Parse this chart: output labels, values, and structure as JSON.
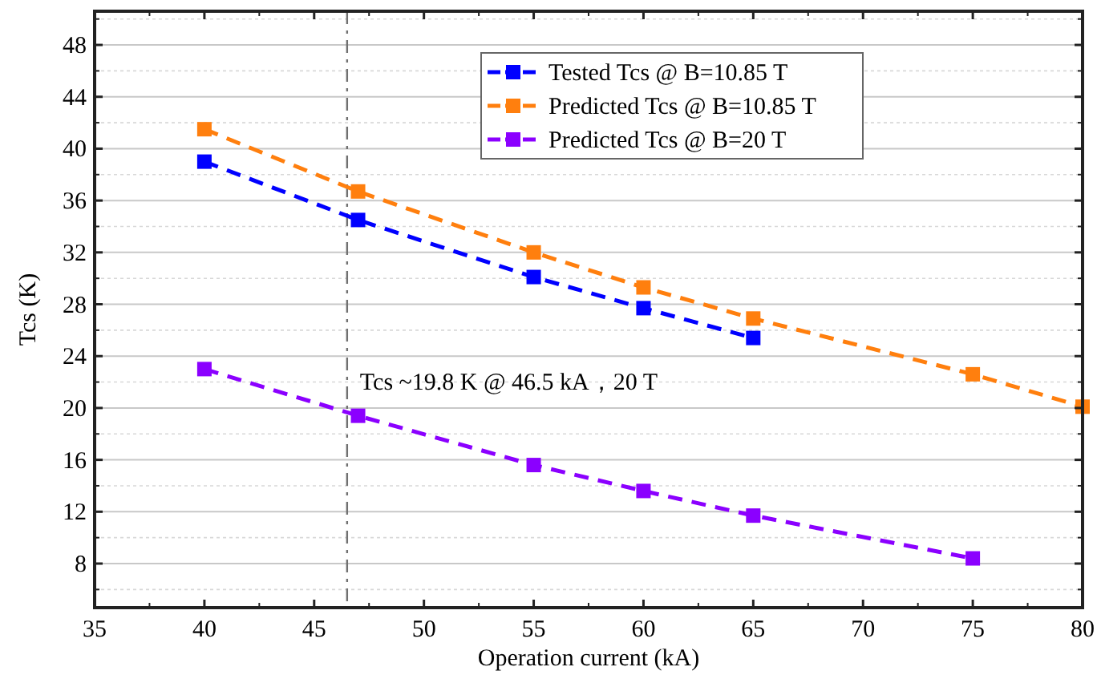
{
  "chart_data": {
    "type": "line",
    "xlabel": "Operation current (kA)",
    "ylabel": "Tcs (K)",
    "xlim": [
      35,
      80
    ],
    "xticks": [
      35,
      40,
      45,
      50,
      55,
      60,
      65,
      70,
      75,
      80
    ],
    "ylim": [
      4.6,
      50.6
    ],
    "yticks": [
      8,
      12,
      16,
      20,
      24,
      28,
      32,
      36,
      40,
      44,
      48
    ],
    "grid": true,
    "legend": "top right",
    "marker": "square",
    "line_style": "dashed",
    "series": [
      {
        "name": "Tested Tcs @ B=10.85 T",
        "color": "#0000ff",
        "x": [
          40,
          47,
          55,
          60,
          65
        ],
        "values": [
          39.0,
          34.5,
          30.1,
          27.7,
          25.4
        ]
      },
      {
        "name": "Predicted Tcs @ B=10.85 T",
        "color": "#ff7f0e",
        "x": [
          40,
          47,
          55,
          60,
          65,
          75,
          80
        ],
        "values": [
          41.5,
          36.7,
          32.0,
          29.3,
          26.9,
          22.6,
          20.1
        ]
      },
      {
        "name": "Predicted Tcs @ B=20 T",
        "color": "#8b00ff",
        "x": [
          40,
          47,
          55,
          60,
          65,
          75
        ],
        "values": [
          23.0,
          19.4,
          15.6,
          13.6,
          11.7,
          8.4
        ]
      }
    ],
    "ref_lines": [
      {
        "axis": "x",
        "value": 46.5,
        "color": "#707070",
        "line_style": "dashdot"
      }
    ],
    "annotations": [
      {
        "text": "Tcs ~19.8 K @ 46.5 kA，20 T",
        "x": 46.5,
        "y": 19.8
      }
    ]
  }
}
